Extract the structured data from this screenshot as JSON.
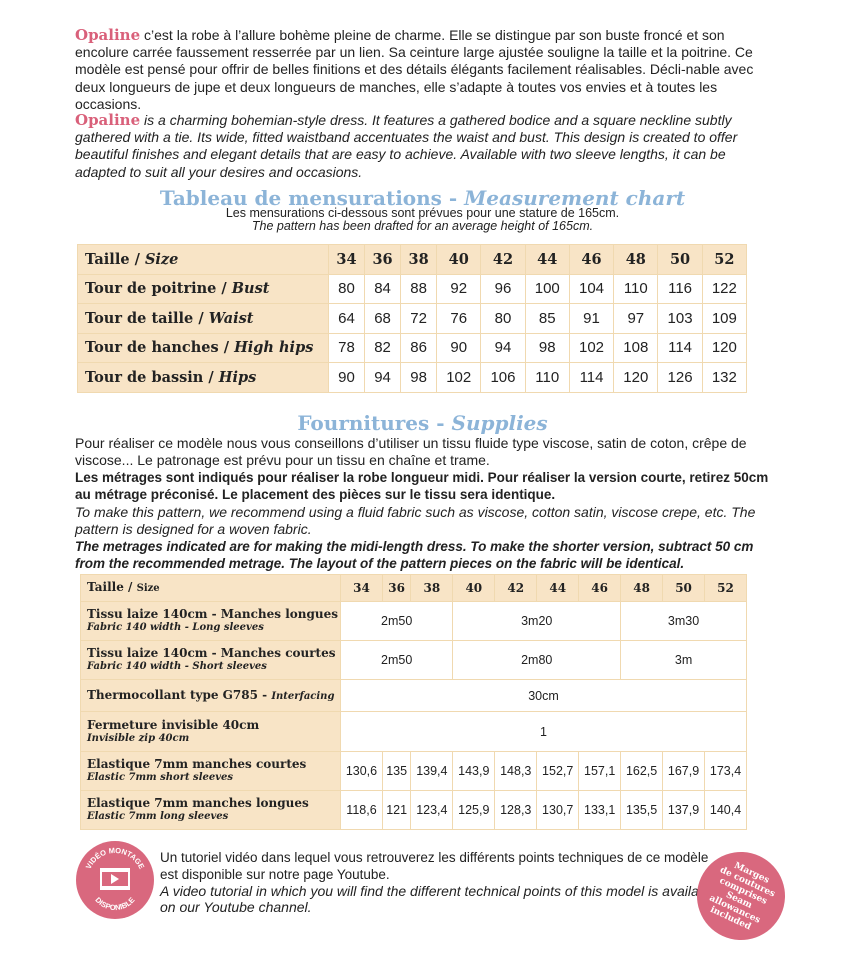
{
  "intro": {
    "brand": "Opaline",
    "fr": " c’est la robe à l’allure bohème pleine de charme. Elle se distingue par son buste froncé et son encolure carrée faussement resserrée par un lien. Sa ceinture large ajustée souligne la taille et la poitrine. Ce modèle est pensé pour offrir de belles finitions et des détails élégants facilement réalisables.  Décli-nable avec deux longueurs de jupe et deux longueurs de manches, elle s’adapte à toutes vos envies et à toutes les occasions.",
    "en": " is a charming bohemian-style dress. It features a gathered bodice and a square neckline subtly gathered with a tie. Its wide, fitted waistband accentuates the waist and bust. This design is created to offer beautiful finishes and elegant details that are easy to achieve. Available with two sleeve lengths, it can be adapted to suit all your desires and occasions."
  },
  "measure": {
    "title_fr": "Tableau de mensurations - ",
    "title_en": "Measurement chart",
    "note_fr": "Les mensurations ci-dessous sont prévues pour une stature de 165cm.",
    "note_en": "The pattern has been drafted for an average height of 165cm.",
    "header": {
      "fr": "Taille / ",
      "en": "Size"
    },
    "sizes": [
      "34",
      "36",
      "38",
      "40",
      "42",
      "44",
      "46",
      "48",
      "50",
      "52"
    ],
    "rows": [
      {
        "fr": "Tour de poitrine / ",
        "en": "Bust",
        "values": [
          "80",
          "84",
          "88",
          "92",
          "96",
          "100",
          "104",
          "110",
          "116",
          "122"
        ]
      },
      {
        "fr": "Tour de taille / ",
        "en": "Waist",
        "values": [
          "64",
          "68",
          "72",
          "76",
          "80",
          "85",
          "91",
          "97",
          "103",
          "109"
        ]
      },
      {
        "fr": "Tour de hanches / ",
        "en": "High hips",
        "values": [
          "78",
          "82",
          "86",
          "90",
          "94",
          "98",
          "102",
          "108",
          "114",
          "120"
        ]
      },
      {
        "fr": "Tour de bassin / ",
        "en": "Hips",
        "values": [
          "90",
          "94",
          "98",
          "102",
          "106",
          "110",
          "114",
          "120",
          "126",
          "132"
        ]
      }
    ]
  },
  "supplies": {
    "title_fr": "Fournitures - ",
    "title_en": "Supplies",
    "p1": "Pour réaliser ce modèle nous vous conseillons d’utiliser un tissu fluide type viscose, satin de coton, crêpe de viscose... Le patronage est prévu pour un tissu en chaîne et trame.",
    "p2": "Les métrages sont indiqués pour réaliser la robe longueur midi. Pour réaliser la version courte, retirez 50cm au métrage préconisé. Le placement des pièces sur le tissu sera identique.",
    "p3": "To make this pattern, we recommend using a fluid fabric such as viscose, cotton satin, viscose crepe, etc. The pattern is designed for a woven fabric.",
    "p4": "The metrages indicated are for making the midi-length dress. To make the shorter version, subtract 50 cm from the recommended metrage. The layout of the pattern pieces on the fabric will be identical.",
    "header": {
      "fr": "Taille / ",
      "en": "Size"
    },
    "sizes": [
      "34",
      "36",
      "38",
      "40",
      "42",
      "44",
      "46",
      "48",
      "50",
      "52"
    ],
    "rows": [
      {
        "fr": "Tissu laize 140cm - Manches  longues",
        "en": "Fabric 140 width - Long sleeves",
        "cells": [
          {
            "v": "2m50",
            "span": 3
          },
          {
            "v": "3m20",
            "span": 4
          },
          {
            "v": "3m30",
            "span": 3
          }
        ]
      },
      {
        "fr": "Tissu laize 140cm - Manches courtes",
        "en": "Fabric 140 width - Short sleeves",
        "cells": [
          {
            "v": "2m50",
            "span": 3
          },
          {
            "v": "2m80",
            "span": 4
          },
          {
            "v": "3m",
            "span": 3
          }
        ]
      },
      {
        "fr": "Thermocollant type G785 - ",
        "en_inline": "Interfacing",
        "cells": [
          {
            "v": "30cm",
            "span": 10
          }
        ]
      },
      {
        "fr": "Fermeture invisible 40cm",
        "en": "Invisible zip 40cm",
        "cells": [
          {
            "v": "1",
            "span": 10
          }
        ]
      },
      {
        "fr": "Elastique 7mm manches courtes",
        "en": "Elastic 7mm short sleeves",
        "cells": [
          {
            "v": "130,6"
          },
          {
            "v": "135"
          },
          {
            "v": "139,4"
          },
          {
            "v": "143,9"
          },
          {
            "v": "148,3"
          },
          {
            "v": "152,7"
          },
          {
            "v": "157,1"
          },
          {
            "v": "162,5"
          },
          {
            "v": "167,9"
          },
          {
            "v": "173,4"
          }
        ]
      },
      {
        "fr": "Elastique 7mm manches longues",
        "en": "Elastic 7mm long sleeves",
        "cells": [
          {
            "v": "118,6"
          },
          {
            "v": "121"
          },
          {
            "v": "123,4"
          },
          {
            "v": "125,9"
          },
          {
            "v": "128,3"
          },
          {
            "v": "130,7"
          },
          {
            "v": "133,1"
          },
          {
            "v": "135,5"
          },
          {
            "v": "137,9"
          },
          {
            "v": "140,4"
          }
        ]
      }
    ]
  },
  "video": {
    "badge_top": "VIDÉO MONTAGE",
    "badge_bottom": "DISPONIBLE",
    "fr": "Un tutoriel vidéo dans lequel vous retrouverez les différents points techniques de ce modèle est disponible sur notre page Youtube.",
    "en1": "A video tutorial in which you will find the different technical points of this model is available",
    "en2": "on our Youtube channel."
  },
  "seam_badge": [
    "Marges",
    "de coutures",
    "comprises",
    "Seam",
    "allowances",
    "included"
  ],
  "colors": {
    "accent_pink": "#d9607a",
    "title_blue": "#8cb4d8",
    "table_beige": "#f8e4c6"
  }
}
